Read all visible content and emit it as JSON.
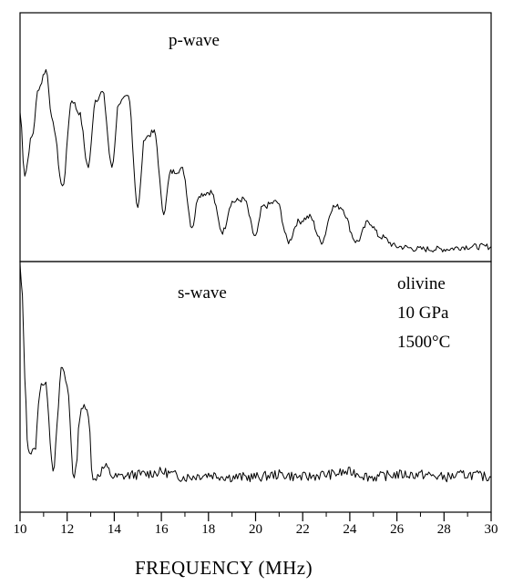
{
  "chart_data": [
    {
      "type": "line",
      "panel_label": "p-wave",
      "xlabel": "FREQUENCY    (MHz)",
      "ylabel": "",
      "xlim": [
        10,
        30
      ],
      "ylim": [
        0,
        1
      ],
      "x_ticks": [
        "10",
        "12",
        "14",
        "16",
        "18",
        "20",
        "22",
        "24",
        "26",
        "28",
        "30"
      ],
      "series": [
        {
          "x": [
            10.0,
            10.2,
            10.5,
            10.8,
            11.1,
            11.4,
            11.8,
            12.2,
            12.5,
            12.9,
            13.2,
            13.5,
            13.9,
            14.2,
            14.6,
            15.0,
            15.3,
            15.7,
            16.1,
            16.4,
            16.9,
            17.3,
            17.6,
            18.1,
            18.6,
            19.0,
            19.5,
            20.0,
            20.3,
            20.9,
            21.4,
            21.8,
            22.3,
            22.8,
            23.3,
            23.6,
            24.3,
            24.8,
            25.3,
            26.0,
            27.0,
            28.0,
            29.0,
            30.0
          ],
          "y": [
            0.6,
            0.35,
            0.5,
            0.7,
            0.77,
            0.55,
            0.3,
            0.65,
            0.6,
            0.38,
            0.65,
            0.68,
            0.38,
            0.64,
            0.66,
            0.22,
            0.5,
            0.52,
            0.2,
            0.36,
            0.37,
            0.14,
            0.27,
            0.28,
            0.12,
            0.24,
            0.25,
            0.1,
            0.22,
            0.24,
            0.08,
            0.16,
            0.18,
            0.08,
            0.22,
            0.22,
            0.08,
            0.16,
            0.1,
            0.06,
            0.05,
            0.05,
            0.06,
            0.06
          ]
        }
      ]
    },
    {
      "type": "line",
      "panel_label": "s-wave",
      "annotation": [
        "olivine",
        "10 GPa",
        "1500°C"
      ],
      "xlabel": "FREQUENCY    (MHz)",
      "ylabel": "",
      "xlim": [
        10,
        30
      ],
      "ylim": [
        0,
        1
      ],
      "x_ticks": [
        "10",
        "12",
        "14",
        "16",
        "18",
        "20",
        "22",
        "24",
        "26",
        "28",
        "30"
      ],
      "series": [
        {
          "x": [
            10.0,
            10.1,
            10.2,
            10.3,
            10.4,
            10.6,
            10.9,
            11.1,
            11.4,
            11.8,
            12.0,
            12.3,
            12.6,
            12.9,
            13.1,
            13.3,
            13.6,
            14.0,
            15.0,
            16.0,
            17.0,
            18.0,
            19.0,
            20.0,
            21.0,
            22.0,
            23.0,
            24.0,
            25.0,
            26.0,
            27.0,
            28.0,
            29.0,
            30.0
          ],
          "y": [
            0.98,
            0.85,
            0.55,
            0.3,
            0.24,
            0.24,
            0.52,
            0.5,
            0.18,
            0.58,
            0.5,
            0.13,
            0.42,
            0.4,
            0.12,
            0.15,
            0.18,
            0.14,
            0.15,
            0.16,
            0.14,
            0.15,
            0.14,
            0.14,
            0.15,
            0.14,
            0.15,
            0.16,
            0.14,
            0.15,
            0.15,
            0.14,
            0.15,
            0.14
          ]
        }
      ]
    }
  ]
}
